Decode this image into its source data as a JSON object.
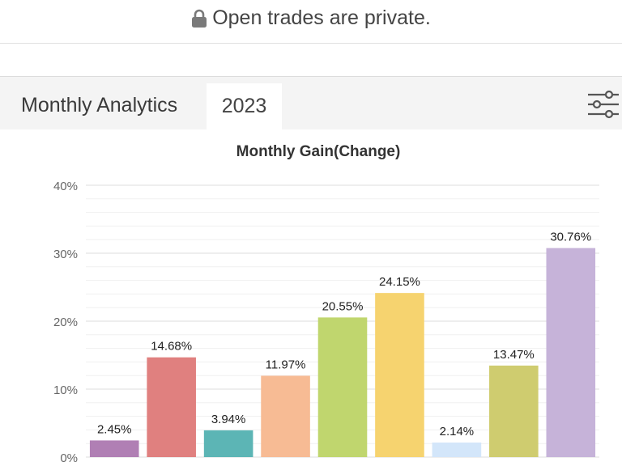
{
  "banner": {
    "text": "Open trades are private.",
    "icon": "lock-icon"
  },
  "tabs": {
    "title": "Monthly Analytics",
    "year": "2023",
    "filter_icon": "sliders-icon"
  },
  "chart_data": {
    "type": "bar",
    "title": "Monthly Gain(Change)",
    "xlabel": "",
    "ylabel": "",
    "ylim": [
      0,
      40
    ],
    "yticks": [
      0,
      10,
      20,
      30,
      40
    ],
    "ytick_labels": [
      "0%",
      "10%",
      "20%",
      "30%",
      "40%"
    ],
    "grid": true,
    "values": [
      2.45,
      14.68,
      3.94,
      11.97,
      20.55,
      24.15,
      2.14,
      13.47,
      30.76
    ],
    "value_labels": [
      "2.45%",
      "14.68%",
      "3.94%",
      "11.97%",
      "20.55%",
      "24.15%",
      "2.14%",
      "13.47%",
      "30.76%"
    ],
    "colors": [
      "#b07fb4",
      "#e0807f",
      "#5cb5b5",
      "#f7bb94",
      "#c0d66e",
      "#f6d36f",
      "#d3e6fa",
      "#cfcc6f",
      "#c6b3d9"
    ]
  }
}
